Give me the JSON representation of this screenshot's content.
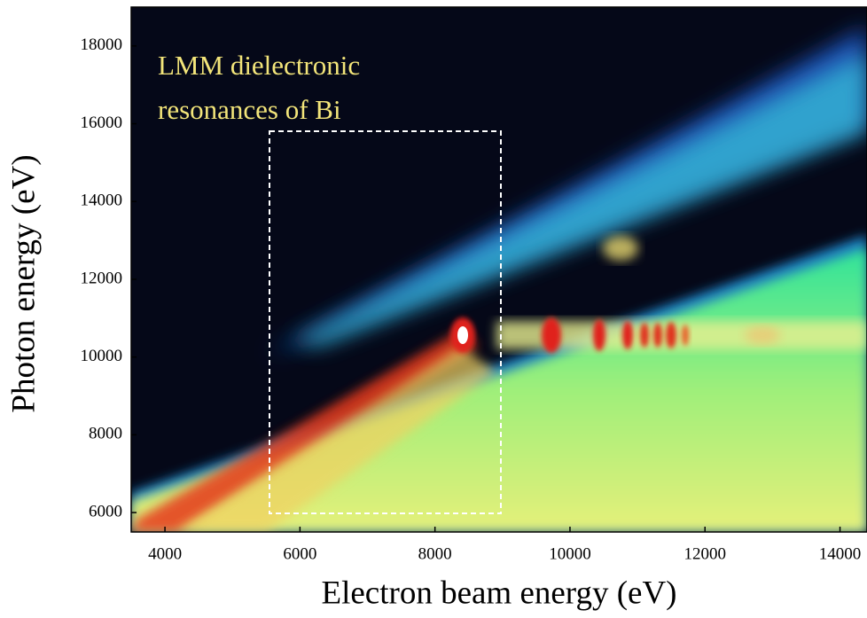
{
  "chart_data": {
    "type": "heatmap",
    "xlabel": "Electron beam energy (eV)",
    "ylabel": "Photon energy (eV)",
    "annotation": [
      "LMM dielectronic",
      "resonances of Bi"
    ],
    "xlim": [
      3500,
      14400
    ],
    "xticks": [
      4000,
      6000,
      8000,
      10000,
      12000,
      14000
    ],
    "ylim": [
      5500,
      19000
    ],
    "yticks": [
      6000,
      8000,
      10000,
      12000,
      14000,
      16000,
      18000
    ]
  }
}
